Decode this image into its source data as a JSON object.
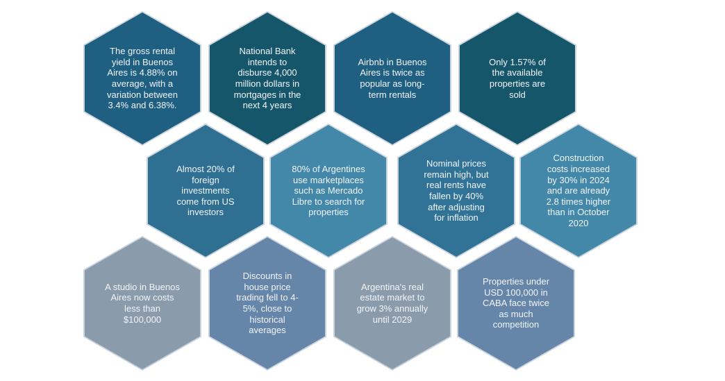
{
  "hexagons": [
    {
      "text": "The gross rental\nyield in Buenos\nAires is 4.88% on\naverage, with a\nvariation between\n3.4% and 6.38%.",
      "color": "#1f5f82"
    },
    {
      "text": "National Bank\nintends to\ndisburse 4,000\nmillion dollars in\nmortgages in the\nnext 4 years",
      "color": "#16566a"
    },
    {
      "text": "Airbnb in Buenos\nAires is twice as\npopular as long-\nterm rentals",
      "color": "#1f5f82"
    },
    {
      "text": "Only 1.57% of\nthe available\nproperties are\nsold",
      "color": "#16566a"
    },
    {
      "text": "Almost 20% of\nforeign\ninvestments\ncome from US\ninvestors",
      "color": "#2f6f92"
    },
    {
      "text": "80% of Argentines\nuse marketplaces\nsuch as Mercado\nLibre to search for\nproperties",
      "color": "#4388a9"
    },
    {
      "text": "Nominal prices\nremain high, but\nreal rents have\nfallen by 40%\nafter adjusting\nfor inflation",
      "color": "#317396"
    },
    {
      "text": "Construction\ncosts increased\nby 30% in 2024\nand are already\n2.8 times higher\nthan in October\n2020",
      "color": "#4388a9"
    },
    {
      "text": "A studio in Buenos\nAires now costs\nless than\n$100,000",
      "color": "#8a9bab"
    },
    {
      "text": "Discounts in\nhouse price\ntrading fell to 4-\n5%, close to\nhistorical\naverages",
      "color": "#6585a9"
    },
    {
      "text": "Argentina's real\nestate market to\ngrow 3% annually\nuntil 2029",
      "color": "#8a9bab"
    },
    {
      "text": "Properties under\nUSD 100,000 in\nCABA face twice\nas much\ncompetition",
      "color": "#6585a9"
    }
  ]
}
